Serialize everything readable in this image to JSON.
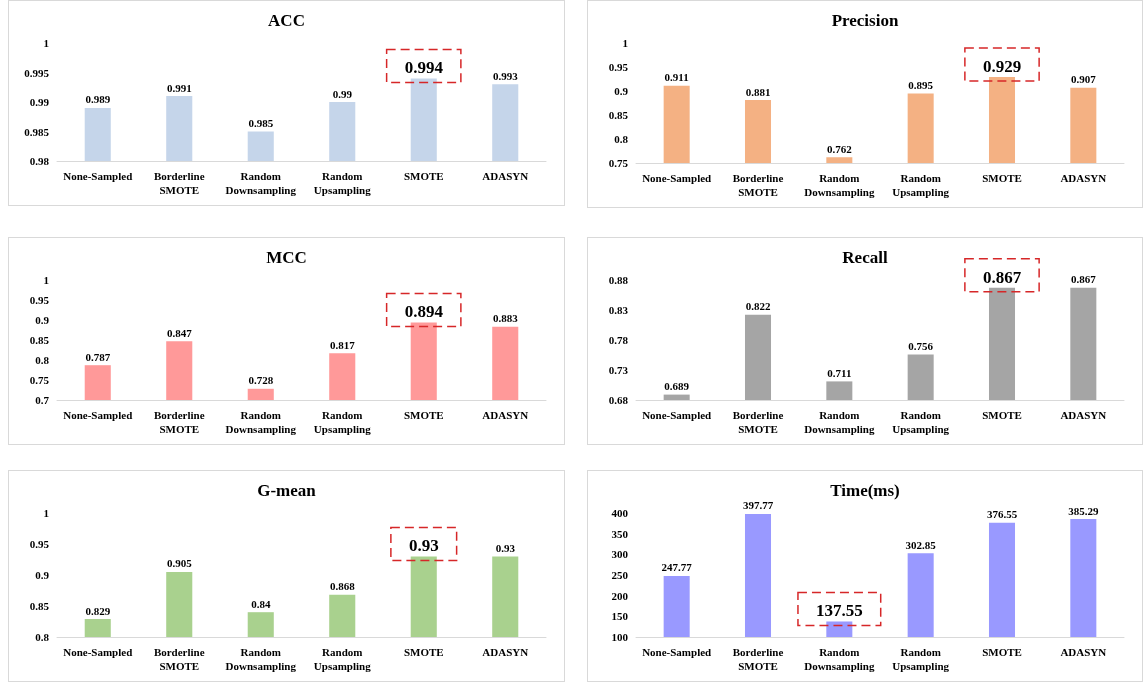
{
  "chart_data": [
    {
      "type": "bar",
      "title": "ACC",
      "categories": [
        "None-Sampled",
        "Borderline SMOTE",
        "Random Downsampling",
        "Random Upsampling",
        "SMOTE",
        "ADASYN"
      ],
      "values": [
        0.989,
        0.991,
        0.985,
        0.99,
        0.994,
        0.993
      ],
      "color": "#c5d5ea",
      "ylim": [
        0.98,
        1
      ],
      "yticks": [
        0.98,
        0.985,
        0.99,
        0.995,
        1
      ],
      "grid": false,
      "value_labels": [
        "0.989",
        "0.991",
        "0.985",
        "0.99",
        null,
        "0.993"
      ],
      "annotations": [
        {
          "text": "0.994",
          "x": "SMOTE",
          "y": 0.994
        }
      ]
    },
    {
      "type": "bar",
      "title": "Precision",
      "categories": [
        "None-Sampled",
        "Borderline SMOTE",
        "Random Downsampling",
        "Random Upsampling",
        "SMOTE",
        "ADASYN"
      ],
      "values": [
        0.911,
        0.881,
        0.762,
        0.895,
        0.929,
        0.907
      ],
      "color": "#f4b183",
      "ylim": [
        0.75,
        1
      ],
      "yticks": [
        0.75,
        0.8,
        0.85,
        0.9,
        0.95,
        1
      ],
      "grid": false,
      "value_labels": [
        "0.911",
        "0.881",
        "0.762",
        "0.895",
        null,
        "0.907"
      ],
      "annotations": [
        {
          "text": "0.929",
          "x": "SMOTE",
          "y": 0.929
        }
      ]
    },
    {
      "type": "bar",
      "title": "MCC",
      "categories": [
        "None-Sampled",
        "Borderline SMOTE",
        "Random Downsampling",
        "Random Upsampling",
        "SMOTE",
        "ADASYN"
      ],
      "values": [
        0.787,
        0.847,
        0.728,
        0.817,
        0.894,
        0.883
      ],
      "color": "#ff9999",
      "ylim": [
        0.7,
        1
      ],
      "yticks": [
        0.7,
        0.75,
        0.8,
        0.85,
        0.9,
        0.95,
        1
      ],
      "grid": false,
      "value_labels": [
        "0.787",
        "0.847",
        "0.728",
        "0.817",
        null,
        "0.883"
      ],
      "annotations": [
        {
          "text": "0.894",
          "x": "SMOTE",
          "y": 0.894
        }
      ]
    },
    {
      "type": "bar",
      "title": "Recall",
      "categories": [
        "None-Sampled",
        "Borderline SMOTE",
        "Random Downsampling",
        "Random Upsampling",
        "SMOTE",
        "ADASYN"
      ],
      "values": [
        0.689,
        0.822,
        0.711,
        0.756,
        0.867,
        0.867
      ],
      "color": "#a5a5a5",
      "ylim": [
        0.68,
        0.88
      ],
      "yticks": [
        0.68,
        0.73,
        0.78,
        0.83,
        0.88
      ],
      "grid": false,
      "value_labels": [
        "0.689",
        "0.822",
        "0.711",
        "0.756",
        null,
        "0.867"
      ],
      "annotations": [
        {
          "text": "0.867",
          "x": "SMOTE",
          "y": 0.867
        }
      ]
    },
    {
      "type": "bar",
      "title": "G-mean",
      "categories": [
        "None-Sampled",
        "Borderline SMOTE",
        "Random Downsampling",
        "Random Upsampling",
        "SMOTE",
        "ADASYN"
      ],
      "values": [
        0.829,
        0.905,
        0.84,
        0.868,
        0.93,
        0.93
      ],
      "color": "#a9d18e",
      "ylim": [
        0.8,
        1
      ],
      "yticks": [
        0.8,
        0.85,
        0.9,
        0.95,
        1
      ],
      "grid": false,
      "value_labels": [
        "0.829",
        "0.905",
        "0.84",
        "0.868",
        null,
        "0.93"
      ],
      "annotations": [
        {
          "text": "0.93",
          "x": "SMOTE",
          "y": 0.93
        }
      ]
    },
    {
      "type": "bar",
      "title": "Time(ms)",
      "categories": [
        "None-Sampled",
        "Borderline SMOTE",
        "Random Downsampling",
        "Random Upsampling",
        "SMOTE",
        "ADASYN"
      ],
      "values": [
        247.77,
        397.77,
        137.55,
        302.85,
        376.55,
        385.29
      ],
      "color": "#9999ff",
      "ylim": [
        100,
        400
      ],
      "yticks": [
        100,
        150,
        200,
        250,
        300,
        350,
        400
      ],
      "grid": false,
      "value_labels": [
        "247.77",
        "397.77",
        null,
        "302.85",
        "376.55",
        "385.29"
      ],
      "annotations": [
        {
          "text": "137.55",
          "x": "Random Downsampling",
          "y": 137.55
        }
      ]
    }
  ]
}
